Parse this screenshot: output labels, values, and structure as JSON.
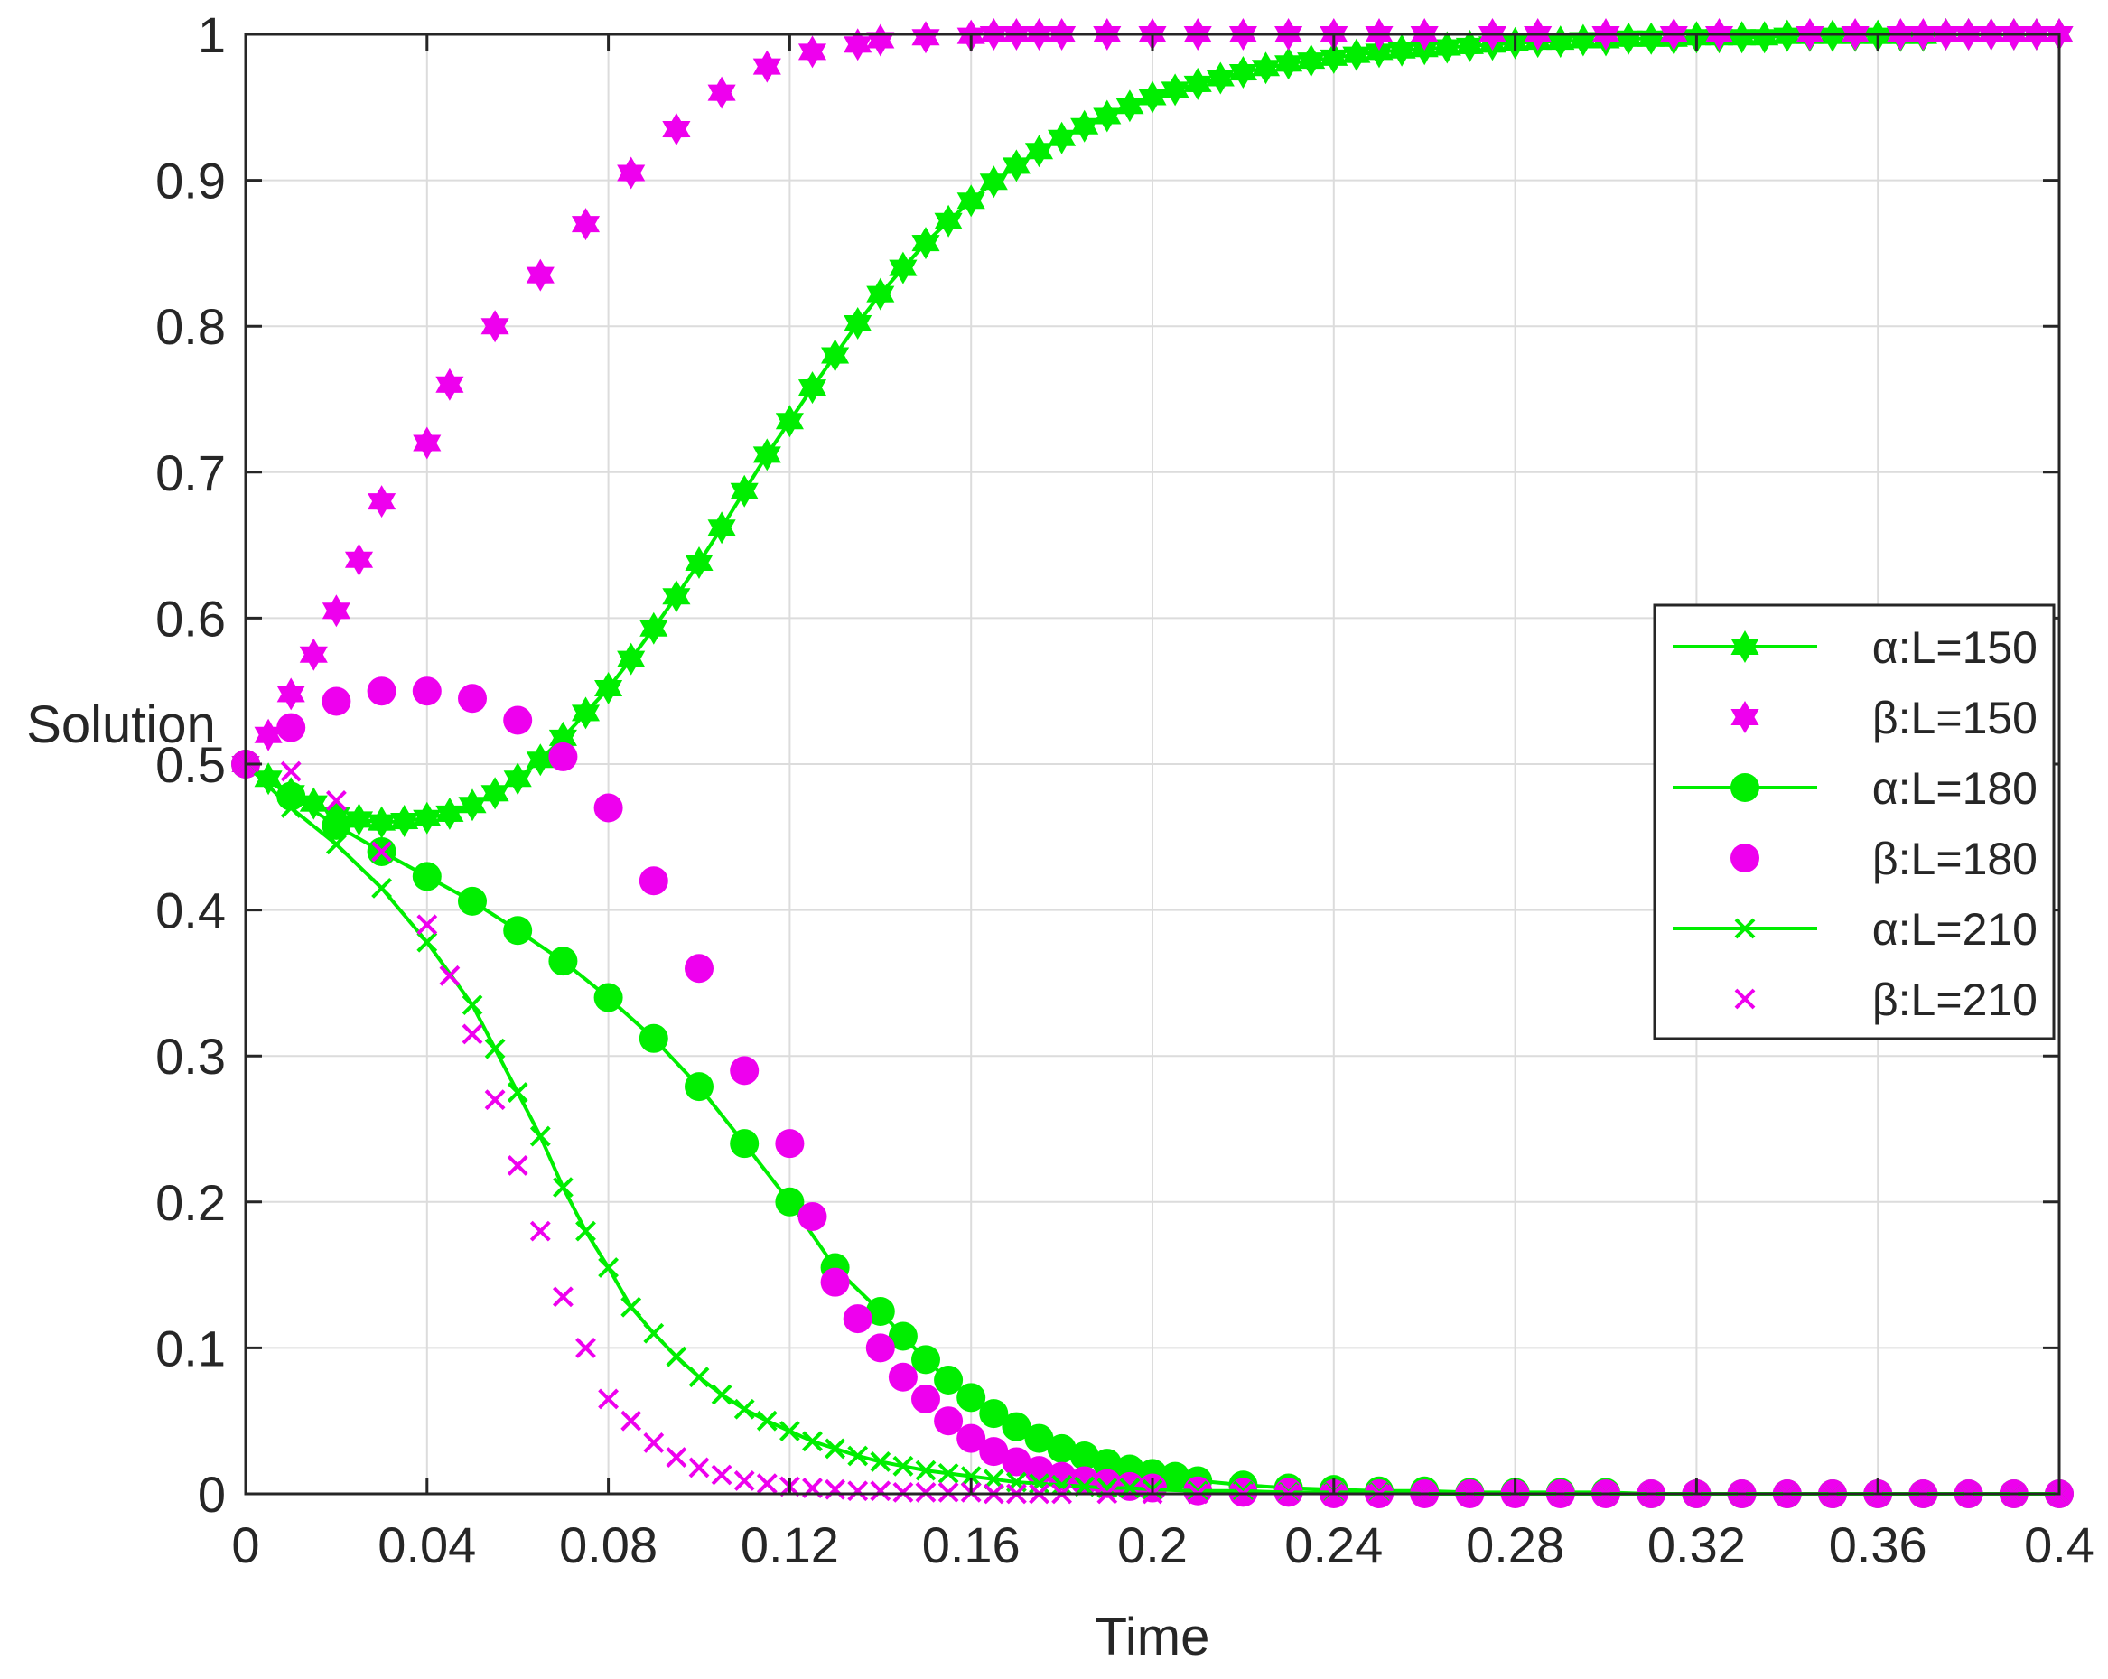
{
  "chart_data": {
    "type": "line",
    "title": "",
    "xlabel": "Time",
    "ylabel": "Solution",
    "xlim": [
      0,
      0.4
    ],
    "ylim": [
      0,
      1
    ],
    "grid": true,
    "legend_position": "right",
    "xticks": [
      0,
      0.04,
      0.08,
      0.12,
      0.16,
      0.2,
      0.24,
      0.28,
      0.32,
      0.36,
      0.4
    ],
    "xtick_labels": [
      "0",
      "0.04",
      "0.08",
      "0.12",
      "0.16",
      "0.2",
      "0.24",
      "0.28",
      "0.32",
      "0.36",
      "0.4"
    ],
    "yticks": [
      0,
      0.1,
      0.2,
      0.3,
      0.4,
      0.5,
      0.6,
      0.7,
      0.8,
      0.9,
      1
    ],
    "ytick_labels": [
      "0",
      "0.1",
      "0.2",
      "0.3",
      "0.4",
      "0.5",
      "0.6",
      "0.7",
      "0.8",
      "0.9",
      "1"
    ],
    "colors": {
      "alpha": "#00ee00",
      "beta": "#ee00ee"
    },
    "series": [
      {
        "name": "α:L=150",
        "role": "alpha",
        "marker": "hexagram",
        "line": true,
        "x": [
          0,
          0.005,
          0.01,
          0.015,
          0.02,
          0.025,
          0.03,
          0.035,
          0.04,
          0.045,
          0.05,
          0.055,
          0.06,
          0.065,
          0.07,
          0.075,
          0.08,
          0.085,
          0.09,
          0.095,
          0.1,
          0.105,
          0.11,
          0.115,
          0.12,
          0.125,
          0.13,
          0.135,
          0.14,
          0.145,
          0.15,
          0.155,
          0.16,
          0.165,
          0.17,
          0.175,
          0.18,
          0.185,
          0.19,
          0.195,
          0.2,
          0.205,
          0.21,
          0.215,
          0.22,
          0.225,
          0.23,
          0.235,
          0.24,
          0.245,
          0.25,
          0.255,
          0.26,
          0.265,
          0.27,
          0.275,
          0.28,
          0.285,
          0.29,
          0.295,
          0.3,
          0.305,
          0.31,
          0.315,
          0.32,
          0.325,
          0.33,
          0.335,
          0.34,
          0.345,
          0.35,
          0.355,
          0.36,
          0.365,
          0.37,
          0.375,
          0.38,
          0.385,
          0.39,
          0.395,
          0.4
        ],
        "y": [
          0.5,
          0.49,
          0.48,
          0.473,
          0.465,
          0.462,
          0.46,
          0.461,
          0.463,
          0.466,
          0.472,
          0.48,
          0.49,
          0.503,
          0.518,
          0.535,
          0.552,
          0.572,
          0.593,
          0.615,
          0.638,
          0.662,
          0.687,
          0.712,
          0.735,
          0.758,
          0.78,
          0.802,
          0.822,
          0.84,
          0.857,
          0.872,
          0.886,
          0.899,
          0.91,
          0.92,
          0.929,
          0.937,
          0.944,
          0.951,
          0.957,
          0.962,
          0.966,
          0.97,
          0.974,
          0.977,
          0.98,
          0.982,
          0.984,
          0.986,
          0.988,
          0.989,
          0.99,
          0.991,
          0.992,
          0.993,
          0.994,
          0.995,
          0.995,
          0.996,
          0.996,
          0.997,
          0.997,
          0.997,
          0.998,
          0.998,
          0.998,
          0.998,
          0.999,
          0.999,
          0.999,
          0.999,
          0.999,
          0.999,
          0.999,
          1.0,
          1.0,
          1.0,
          1.0,
          1.0,
          1.0
        ]
      },
      {
        "name": "β:L=150",
        "role": "beta",
        "marker": "hexagram",
        "line": false,
        "x": [
          0,
          0.005,
          0.01,
          0.015,
          0.02,
          0.025,
          0.03,
          0.04,
          0.045,
          0.055,
          0.065,
          0.075,
          0.085,
          0.095,
          0.105,
          0.115,
          0.125,
          0.135,
          0.14,
          0.15,
          0.16,
          0.165,
          0.17,
          0.175,
          0.18,
          0.19,
          0.2,
          0.21,
          0.22,
          0.23,
          0.24,
          0.25,
          0.26,
          0.275,
          0.285,
          0.3,
          0.315,
          0.325,
          0.345,
          0.355,
          0.365,
          0.37,
          0.375,
          0.38,
          0.385,
          0.39,
          0.395,
          0.4
        ],
        "y": [
          0.5,
          0.52,
          0.548,
          0.575,
          0.605,
          0.64,
          0.68,
          0.72,
          0.76,
          0.8,
          0.835,
          0.87,
          0.905,
          0.935,
          0.96,
          0.978,
          0.988,
          0.993,
          0.996,
          0.998,
          0.999,
          1,
          1,
          1,
          1,
          1,
          1,
          1,
          1,
          1,
          1,
          1,
          1,
          1,
          1,
          1,
          1,
          1,
          1,
          1,
          1,
          1,
          1,
          1,
          1,
          1,
          1,
          1
        ]
      },
      {
        "name": "α:L=180",
        "role": "alpha",
        "marker": "circle",
        "line": true,
        "x": [
          0,
          0.01,
          0.02,
          0.03,
          0.04,
          0.05,
          0.06,
          0.07,
          0.08,
          0.09,
          0.1,
          0.11,
          0.12,
          0.13,
          0.14,
          0.145,
          0.15,
          0.155,
          0.16,
          0.165,
          0.17,
          0.175,
          0.18,
          0.185,
          0.19,
          0.195,
          0.2,
          0.205,
          0.21,
          0.22,
          0.23,
          0.24,
          0.25,
          0.26,
          0.27,
          0.28,
          0.29,
          0.3,
          0.31,
          0.32,
          0.33,
          0.34,
          0.35,
          0.36,
          0.37,
          0.38,
          0.39,
          0.4
        ],
        "y": [
          0.5,
          0.478,
          0.458,
          0.44,
          0.423,
          0.406,
          0.386,
          0.365,
          0.34,
          0.312,
          0.279,
          0.24,
          0.2,
          0.155,
          0.125,
          0.108,
          0.092,
          0.078,
          0.066,
          0.055,
          0.046,
          0.038,
          0.031,
          0.026,
          0.021,
          0.017,
          0.014,
          0.012,
          0.009,
          0.006,
          0.004,
          0.003,
          0.002,
          0.002,
          0.001,
          0.001,
          0.001,
          0.001,
          0,
          0,
          0,
          0,
          0,
          0,
          0,
          0,
          0,
          0
        ]
      },
      {
        "name": "β:L=180",
        "role": "beta",
        "marker": "circle",
        "line": false,
        "x": [
          0,
          0.01,
          0.02,
          0.03,
          0.04,
          0.05,
          0.06,
          0.07,
          0.08,
          0.09,
          0.1,
          0.11,
          0.12,
          0.125,
          0.13,
          0.135,
          0.14,
          0.145,
          0.15,
          0.155,
          0.16,
          0.165,
          0.17,
          0.175,
          0.18,
          0.185,
          0.19,
          0.195,
          0.2,
          0.21,
          0.22,
          0.23,
          0.24,
          0.25,
          0.26,
          0.27,
          0.28,
          0.29,
          0.3,
          0.31,
          0.32,
          0.33,
          0.34,
          0.35,
          0.36,
          0.37,
          0.38,
          0.39,
          0.4
        ],
        "y": [
          0.5,
          0.525,
          0.543,
          0.55,
          0.55,
          0.545,
          0.53,
          0.505,
          0.47,
          0.42,
          0.36,
          0.29,
          0.24,
          0.19,
          0.145,
          0.12,
          0.1,
          0.08,
          0.065,
          0.05,
          0.038,
          0.029,
          0.022,
          0.016,
          0.012,
          0.009,
          0.007,
          0.005,
          0.004,
          0.002,
          0.001,
          0.001,
          0,
          0,
          0,
          0,
          0,
          0,
          0,
          0,
          0,
          0,
          0,
          0,
          0,
          0,
          0,
          0,
          0
        ]
      },
      {
        "name": "α:L=210",
        "role": "alpha",
        "marker": "x",
        "line": true,
        "x": [
          0,
          0.01,
          0.02,
          0.03,
          0.04,
          0.05,
          0.055,
          0.06,
          0.065,
          0.07,
          0.075,
          0.08,
          0.085,
          0.09,
          0.095,
          0.1,
          0.105,
          0.11,
          0.115,
          0.12,
          0.125,
          0.13,
          0.135,
          0.14,
          0.145,
          0.15,
          0.155,
          0.16,
          0.165,
          0.17,
          0.175,
          0.18,
          0.185,
          0.19,
          0.195,
          0.2,
          0.21,
          0.22,
          0.23,
          0.24,
          0.25,
          0.26,
          0.27,
          0.28,
          0.29,
          0.3,
          0.31,
          0.32,
          0.33,
          0.34,
          0.35,
          0.36,
          0.37,
          0.38,
          0.39,
          0.4
        ],
        "y": [
          0.5,
          0.47,
          0.445,
          0.415,
          0.378,
          0.335,
          0.305,
          0.275,
          0.245,
          0.21,
          0.18,
          0.155,
          0.128,
          0.11,
          0.094,
          0.08,
          0.068,
          0.058,
          0.05,
          0.043,
          0.036,
          0.031,
          0.026,
          0.022,
          0.019,
          0.016,
          0.014,
          0.012,
          0.01,
          0.008,
          0.007,
          0.006,
          0.005,
          0.004,
          0.004,
          0.003,
          0.002,
          0.002,
          0.001,
          0.001,
          0.001,
          0,
          0,
          0,
          0,
          0,
          0,
          0,
          0,
          0,
          0,
          0,
          0,
          0,
          0,
          0
        ]
      },
      {
        "name": "β:L=210",
        "role": "beta",
        "marker": "x",
        "line": false,
        "x": [
          0,
          0.01,
          0.02,
          0.03,
          0.04,
          0.045,
          0.05,
          0.055,
          0.06,
          0.065,
          0.07,
          0.075,
          0.08,
          0.085,
          0.09,
          0.095,
          0.1,
          0.105,
          0.11,
          0.115,
          0.12,
          0.125,
          0.13,
          0.135,
          0.14,
          0.145,
          0.15,
          0.155,
          0.16,
          0.165,
          0.17,
          0.175,
          0.18,
          0.19,
          0.2,
          0.21,
          0.22,
          0.23,
          0.24,
          0.25,
          0.26,
          0.27,
          0.28,
          0.29,
          0.3,
          0.31,
          0.32,
          0.33,
          0.34,
          0.35,
          0.36,
          0.37,
          0.38,
          0.39,
          0.4
        ],
        "y": [
          0.5,
          0.495,
          0.475,
          0.44,
          0.39,
          0.355,
          0.315,
          0.27,
          0.225,
          0.18,
          0.135,
          0.1,
          0.065,
          0.05,
          0.035,
          0.025,
          0.018,
          0.013,
          0.009,
          0.007,
          0.005,
          0.004,
          0.003,
          0.002,
          0.002,
          0.001,
          0.001,
          0.001,
          0.001,
          0,
          0,
          0,
          0,
          0,
          0,
          0,
          0,
          0,
          0,
          0,
          0,
          0,
          0,
          0,
          0,
          0,
          0,
          0,
          0,
          0,
          0,
          0,
          0,
          0,
          0
        ]
      }
    ]
  }
}
